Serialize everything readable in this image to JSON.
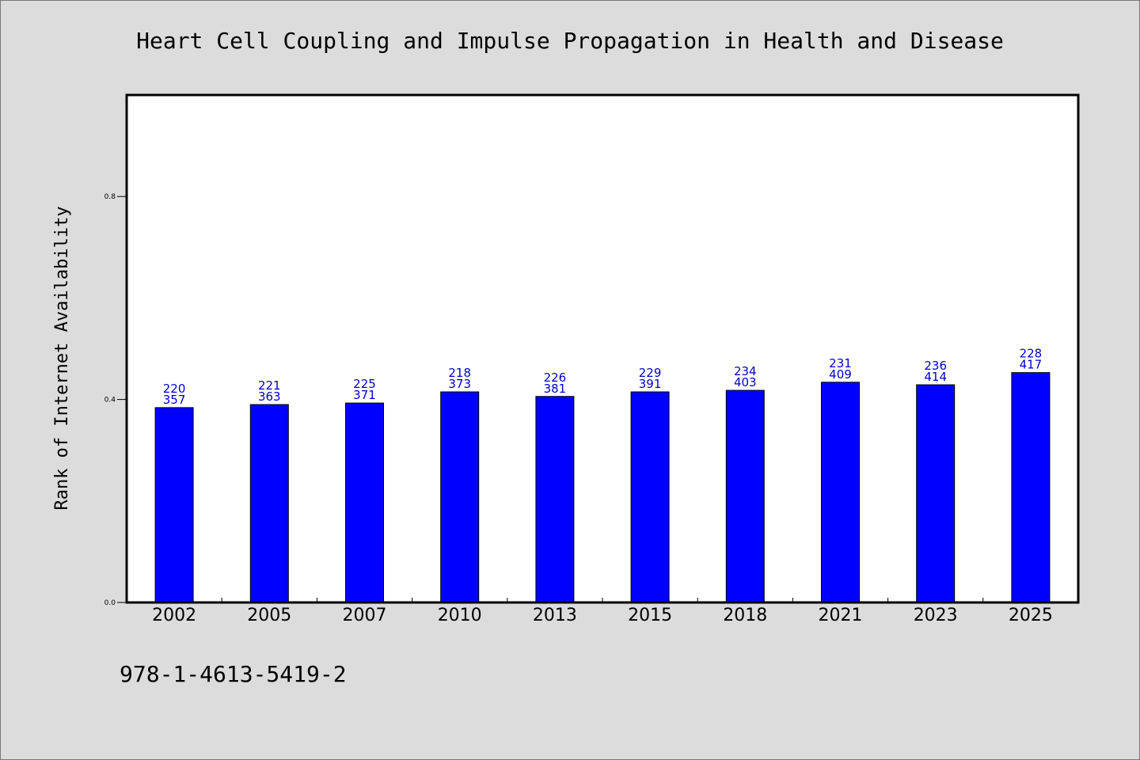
{
  "chart_data": {
    "type": "bar",
    "title": "Heart Cell Coupling and Impulse Propagation in Health and Disease",
    "ylabel": "Rank of Internet Availability",
    "xlabel": "",
    "categories": [
      "2002",
      "2005",
      "2007",
      "2010",
      "2013",
      "2015",
      "2018",
      "2021",
      "2023",
      "2025"
    ],
    "values": [
      0.384,
      0.39,
      0.393,
      0.415,
      0.406,
      0.415,
      0.418,
      0.434,
      0.429,
      0.453
    ],
    "bar_labels": [
      [
        "220",
        "357"
      ],
      [
        "221",
        "363"
      ],
      [
        "225",
        "371"
      ],
      [
        "218",
        "373"
      ],
      [
        "226",
        "381"
      ],
      [
        "229",
        "391"
      ],
      [
        "234",
        "403"
      ],
      [
        "231",
        "409"
      ],
      [
        "236",
        "414"
      ],
      [
        "228",
        "417"
      ]
    ],
    "ylim": [
      0,
      1.0
    ],
    "yticks": [
      "0.0",
      "0.4",
      "0.8"
    ],
    "bar_color": "#0000ff",
    "label_color": "#0000cc",
    "grid": false
  },
  "footer": {
    "isbn": "978-1-4613-5419-2"
  }
}
